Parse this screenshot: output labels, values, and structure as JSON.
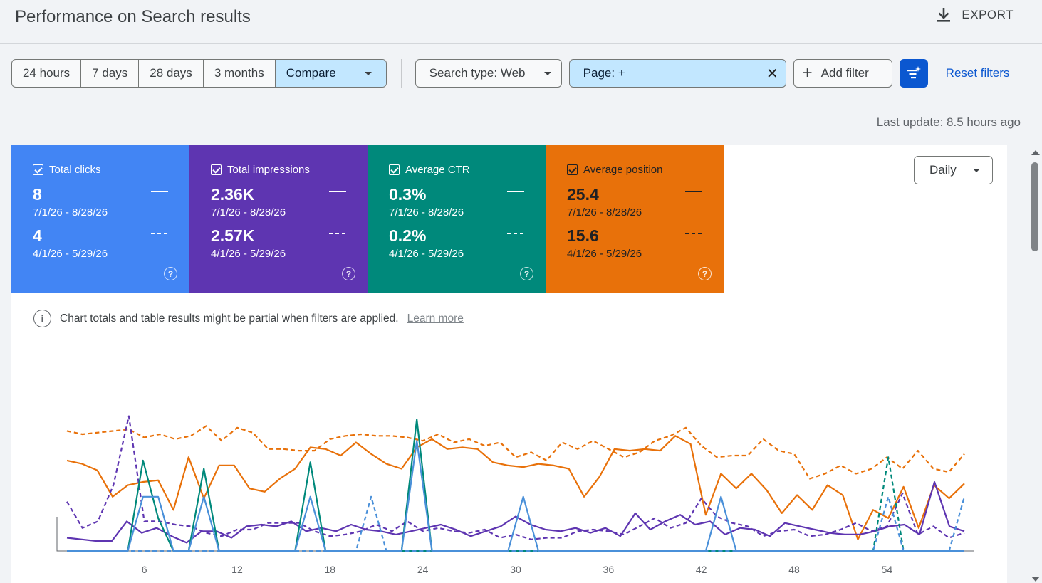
{
  "header": {
    "title": "Performance on Search results",
    "export_label": "EXPORT"
  },
  "toolbar": {
    "date_ranges": [
      "24 hours",
      "7 days",
      "28 days",
      "3 months"
    ],
    "compare_label": "Compare",
    "search_type": "Search type: Web",
    "page_filter": "Page: +",
    "add_filter": "Add filter",
    "reset_filters": "Reset filters"
  },
  "last_update": "Last update: 8.5 hours ago",
  "metrics": [
    {
      "label": "Total clicks",
      "value": "8",
      "range": "7/1/26 - 8/28/26",
      "compare_value": "4",
      "compare_range": "4/1/26 - 5/29/26",
      "color": "#4285f4"
    },
    {
      "label": "Total impressions",
      "value": "2.36K",
      "range": "7/1/26 - 8/28/26",
      "compare_value": "2.57K",
      "compare_range": "4/1/26 - 5/29/26",
      "color": "#5e35b1"
    },
    {
      "label": "Average CTR",
      "value": "0.3%",
      "range": "7/1/26 - 8/28/26",
      "compare_value": "0.2%",
      "compare_range": "4/1/26 - 5/29/26",
      "color": "#00897b"
    },
    {
      "label": "Average position",
      "value": "25.4",
      "range": "7/1/26 - 8/28/26",
      "compare_value": "15.6",
      "compare_range": "4/1/26 - 5/29/26",
      "color": "#e8710a"
    }
  ],
  "granularity": "Daily",
  "notice": {
    "text": "Chart totals and table results might be partial when filters are applied.",
    "link": "Learn more"
  },
  "chart_data": {
    "type": "line",
    "x_ticks": [
      6,
      12,
      18,
      24,
      30,
      36,
      42,
      48,
      54
    ],
    "x_range": [
      1,
      59
    ],
    "y_range": [
      0,
      100
    ],
    "series": [
      {
        "metric": "Average position",
        "period": "current",
        "color": "#e8710a",
        "dashed": false,
        "values": [
          55,
          53,
          49,
          33,
          40,
          42,
          43,
          25,
          57,
          32,
          52,
          52,
          38,
          36,
          44,
          50,
          63,
          62,
          58,
          66,
          59,
          53,
          50,
          63,
          68,
          62,
          63,
          62,
          54,
          52,
          51,
          53,
          52,
          50,
          33,
          45,
          62,
          61,
          62,
          61,
          70,
          65,
          22,
          47,
          38,
          47,
          37,
          23,
          34,
          25,
          40,
          34,
          7,
          25,
          20,
          39,
          14,
          40,
          32,
          41
        ],
        "note": "relative level 0-100 (chart shows no y-axis labels)"
      },
      {
        "metric": "Average position",
        "period": "compare",
        "color": "#e8710a",
        "dashed": false,
        "style": "dashed",
        "values": [
          73,
          71,
          72,
          73,
          74,
          69,
          71,
          68,
          70,
          76,
          67,
          75,
          72,
          62,
          62,
          61,
          61,
          68,
          70,
          71,
          70,
          70,
          69,
          67,
          71,
          66,
          68,
          64,
          66,
          57,
          60,
          55,
          66,
          62,
          67,
          62,
          57,
          60,
          67,
          70,
          75,
          64,
          57,
          58,
          58,
          68,
          61,
          59,
          44,
          47,
          52,
          47,
          50,
          57,
          50,
          61,
          50,
          48,
          59
        ],
        "note": "dashed line, relative level 0-100"
      },
      {
        "metric": "Total impressions",
        "period": "current",
        "color": "#5e35b1",
        "dashed": false,
        "values": [
          8,
          7,
          6,
          6,
          18,
          11,
          14,
          9,
          5,
          12,
          12,
          8,
          15,
          16,
          15,
          18,
          12,
          14,
          12,
          16,
          13,
          12,
          10,
          12,
          14,
          16,
          13,
          9,
          12,
          15,
          21,
          16,
          13,
          12,
          14,
          11,
          14,
          9,
          23,
          13,
          18,
          22,
          16,
          18,
          10,
          14,
          13,
          9,
          17,
          15,
          13,
          11,
          10,
          10,
          12,
          15,
          16,
          10,
          42,
          15,
          12
        ],
        "note": "relative level 0-100"
      },
      {
        "metric": "Total impressions",
        "period": "compare",
        "color": "#5e35b1",
        "style": "dashed",
        "values": [
          30,
          14,
          18,
          40,
          82,
          18,
          18,
          16,
          15,
          11,
          9,
          13,
          13,
          17,
          17,
          17,
          12,
          9,
          10,
          12,
          16,
          12,
          18,
          12,
          14,
          12,
          11,
          13,
          8,
          10,
          7,
          8,
          8,
          12,
          13,
          12,
          10,
          15,
          20,
          14,
          17,
          32,
          21,
          17,
          15,
          9,
          12,
          13,
          9,
          10,
          13,
          17,
          12,
          15,
          35,
          10,
          15,
          8,
          11
        ],
        "note": "dashed line, relative level 0-100"
      },
      {
        "metric": "Average CTR",
        "period": "current",
        "color": "#00897b",
        "dashed": false,
        "values": [
          0,
          0,
          0,
          0,
          0,
          55,
          20,
          0,
          0,
          50,
          0,
          0,
          0,
          0,
          0,
          0,
          54,
          0,
          0,
          0,
          0,
          0,
          0,
          80,
          0,
          0,
          0,
          0,
          0,
          0,
          0,
          0,
          0,
          0,
          0,
          0,
          0,
          0,
          0,
          0,
          0,
          0,
          0,
          0,
          0,
          0,
          0,
          0,
          0,
          0,
          0,
          0,
          0,
          0,
          0,
          0,
          0,
          0,
          0,
          0
        ],
        "note": "relative level 0-100"
      },
      {
        "metric": "Average CTR",
        "period": "compare",
        "color": "#00897b",
        "style": "dashed",
        "values": [
          0,
          0,
          0,
          0,
          0,
          0,
          0,
          0,
          0,
          0,
          0,
          0,
          0,
          0,
          0,
          0,
          0,
          0,
          0,
          0,
          0,
          0,
          0,
          0,
          0,
          0,
          0,
          0,
          0,
          0,
          0,
          0,
          0,
          0,
          0,
          0,
          0,
          0,
          0,
          0,
          0,
          0,
          0,
          0,
          0,
          0,
          0,
          0,
          0,
          0,
          0,
          0,
          0,
          0,
          57,
          0,
          0,
          0,
          0,
          0
        ],
        "note": "dashed line, relative level 0-100"
      },
      {
        "metric": "Total clicks",
        "period": "current",
        "color": "#4a90d9",
        "dashed": false,
        "values": [
          0,
          0,
          0,
          0,
          0,
          33,
          33,
          0,
          0,
          33,
          0,
          0,
          0,
          0,
          0,
          0,
          33,
          0,
          0,
          0,
          0,
          0,
          0,
          67,
          0,
          0,
          0,
          0,
          0,
          0,
          33,
          0,
          0,
          0,
          0,
          0,
          0,
          0,
          0,
          0,
          0,
          0,
          0,
          33,
          0,
          0,
          0,
          0,
          0,
          0,
          0,
          0,
          0,
          0,
          0,
          0,
          0,
          0,
          0,
          0
        ],
        "note": "relative level 0-100"
      },
      {
        "metric": "Total clicks",
        "period": "compare",
        "color": "#4a90d9",
        "style": "dashed",
        "values": [
          0,
          0,
          0,
          0,
          0,
          0,
          0,
          0,
          0,
          0,
          0,
          0,
          0,
          0,
          0,
          0,
          0,
          0,
          0,
          0,
          33,
          0,
          0,
          0,
          0,
          0,
          0,
          0,
          0,
          0,
          0,
          0,
          0,
          0,
          0,
          0,
          0,
          0,
          0,
          0,
          0,
          0,
          0,
          0,
          0,
          0,
          0,
          0,
          0,
          0,
          0,
          0,
          0,
          0,
          33,
          0,
          0,
          0,
          0,
          33
        ],
        "note": "dashed line, relative level 0-100"
      }
    ]
  }
}
